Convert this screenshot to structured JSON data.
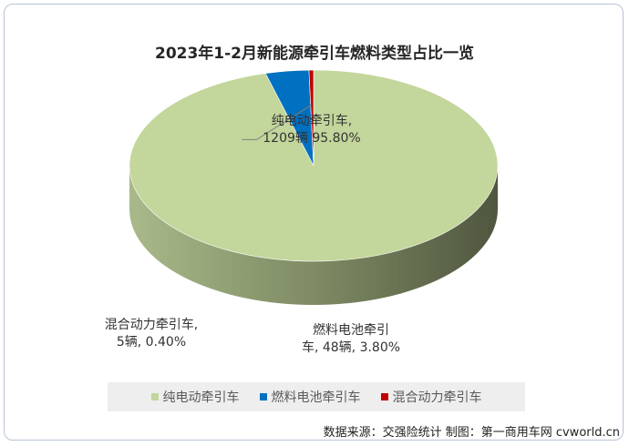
{
  "chart_data": {
    "type": "pie",
    "title": "2023年1-2月新能源牵引车燃料类型占比一览",
    "series": [
      {
        "name": "纯电动牵引车",
        "value": 1209,
        "percent": 95.8,
        "unit": "辆",
        "color": "#c3d69b",
        "label_line1": "纯电动牵引车,",
        "label_line2": "1209辆 95.80%"
      },
      {
        "name": "燃料电池牵引车",
        "value": 48,
        "percent": 3.8,
        "unit": "辆",
        "color": "#0070c0",
        "label_line1": "燃料电池牵引",
        "label_line2": "车, 48辆, 3.80%"
      },
      {
        "name": "混合动力牵引车",
        "value": 5,
        "percent": 0.4,
        "unit": "辆",
        "color": "#c00000",
        "label_line1": "混合动力牵引车,",
        "label_line2": "5辆, 0.40%"
      }
    ],
    "legend_position": "bottom"
  },
  "source_note": "数据来源：交强险统计 制图：第一商用车网 cvworld.cn"
}
